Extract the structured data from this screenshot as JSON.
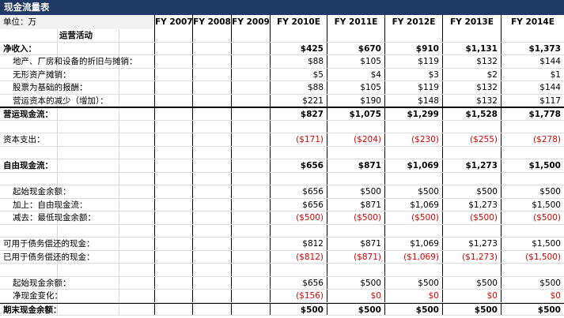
{
  "title": "现金流量表",
  "unit_label": "单位：万",
  "headers": [
    "FY 2007",
    "FY 2008",
    "FY 2009",
    "FY 2010E",
    "FY 2011E",
    "FY 2012E",
    "FY 2013E",
    "FY 2014E"
  ],
  "rows": [
    {
      "label": "运营活动",
      "style": "section",
      "values": [
        "",
        "",
        "",
        "",
        "",
        "",
        "",
        ""
      ]
    },
    {
      "label": "净收入：",
      "style": "bold",
      "values": [
        "",
        "",
        "",
        "$425",
        "$670",
        "$910",
        "$1,131",
        "$1,373"
      ]
    },
    {
      "label": "地产、厂房和设备的折旧与摊销：",
      "style": "indent",
      "values": [
        "",
        "",
        "",
        "$88",
        "$105",
        "$119",
        "$132",
        "$144"
      ]
    },
    {
      "label": "无形资产摊销：",
      "style": "indent",
      "values": [
        "",
        "",
        "",
        "$5",
        "$4",
        "$3",
        "$2",
        "$1"
      ]
    },
    {
      "label": "股票为基础的报酬：",
      "style": "indent",
      "values": [
        "",
        "",
        "",
        "$88",
        "$105",
        "$119",
        "$132",
        "$144"
      ]
    },
    {
      "label": "营运资本的减少（增加）：",
      "style": "indent-double",
      "values": [
        "",
        "",
        "",
        "$221",
        "$190",
        "$148",
        "$132",
        "$117"
      ]
    },
    {
      "label": "营运现金流：",
      "style": "bold",
      "values": [
        "",
        "",
        "",
        "$827",
        "$1,075",
        "$1,299",
        "$1,528",
        "$1,778"
      ]
    },
    {
      "label": "",
      "style": "blank",
      "values": [
        "",
        "",
        "",
        "",
        "",
        "",
        "",
        ""
      ]
    },
    {
      "label": "资本支出：",
      "style": "normal",
      "values": [
        "",
        "",
        "",
        "($171)",
        "($204)",
        "($230)",
        "($255)",
        "($278)"
      ]
    },
    {
      "label": "",
      "style": "blank",
      "values": [
        "",
        "",
        "",
        "",
        "",
        "",
        "",
        ""
      ]
    },
    {
      "label": "自由现金流：",
      "style": "bold",
      "values": [
        "",
        "",
        "",
        "$656",
        "$871",
        "$1,069",
        "$1,273",
        "$1,500"
      ]
    },
    {
      "label": "",
      "style": "blank",
      "values": [
        "",
        "",
        "",
        "",
        "",
        "",
        "",
        ""
      ]
    },
    {
      "label": "起始现金余额：",
      "style": "indent",
      "values": [
        "",
        "",
        "",
        "$656",
        "$500",
        "$500",
        "$500",
        "$500"
      ]
    },
    {
      "label": "加上：自由现金流：",
      "style": "indent",
      "values": [
        "",
        "",
        "",
        "$656",
        "$871",
        "$1,069",
        "$1,273",
        "$1,500"
      ]
    },
    {
      "label": "减去：最低现金余额：",
      "style": "indent",
      "values": [
        "",
        "",
        "",
        "($500)",
        "($500)",
        "($500)",
        "($500)",
        "($500)"
      ]
    },
    {
      "label": "",
      "style": "blank",
      "values": [
        "",
        "",
        "",
        "",
        "",
        "",
        "",
        ""
      ]
    },
    {
      "label": "可用于债务偿还的现金：",
      "style": "normal",
      "values": [
        "",
        "",
        "",
        "$812",
        "$871",
        "$1,069",
        "$1,273",
        "$1,500"
      ]
    },
    {
      "label": "已用于债务偿还的现金：",
      "style": "normal",
      "values": [
        "",
        "",
        "",
        "($812)",
        "($871)",
        "($1,069)",
        "($1,273)",
        "($1,500)"
      ]
    },
    {
      "label": "",
      "style": "blank",
      "values": [
        "",
        "",
        "",
        "",
        "",
        "",
        "",
        ""
      ]
    },
    {
      "label": "起始现金余额：",
      "style": "indent",
      "values": [
        "",
        "",
        "",
        "$656",
        "$500",
        "$500",
        "$500",
        "$500"
      ]
    },
    {
      "label": "净现金变化：",
      "style": "indent",
      "values": [
        "",
        "",
        "",
        "($156)",
        "$0",
        "$0",
        "$0",
        "$0"
      ]
    },
    {
      "label": "期末现金余额：",
      "style": "bold-final",
      "values": [
        "",
        "",
        "",
        "$500",
        "$500",
        "$500",
        "$500",
        "$500"
      ]
    }
  ],
  "colors": {
    "title_bg": "#1f3864",
    "negative": "#e00000"
  }
}
